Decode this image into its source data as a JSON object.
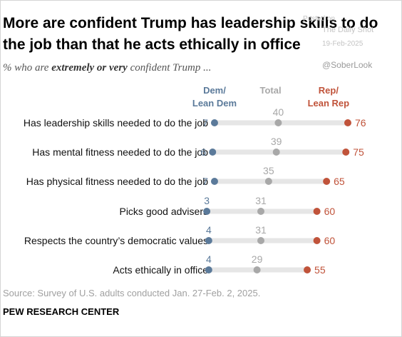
{
  "title": "More are confident Trump has leadership skills to do the job than that he acts ethically in office",
  "subtitle_prefix": "% who are ",
  "subtitle_emph": "extremely or very",
  "subtitle_suffix": " confident Trump ...",
  "watermark": {
    "posted": "Posted on",
    "site": "The Daily Shot",
    "date": "19-Feb-2025",
    "handle": "@SoberLook"
  },
  "source": "Source: Survey of U.S. adults conducted Jan. 27-Feb. 2, 2025.",
  "organization": "PEW RESEARCH CENTER",
  "colors": {
    "dem": "#5b7a9a",
    "total": "#a8a8a8",
    "rep": "#c0533a",
    "track": "#e6e6e6"
  },
  "chart_data": {
    "type": "dot",
    "xlim": [
      0,
      100
    ],
    "series": [
      {
        "name": "Dem/\nLean Dem",
        "key": "dem"
      },
      {
        "name": "Total",
        "key": "total"
      },
      {
        "name": "Rep/\nLean Rep",
        "key": "rep"
      }
    ],
    "categories": [
      "Has leadership skills needed to do the job",
      "Has mental fitness needed to do the job",
      "Has physical fitness needed to do the job",
      "Picks good advisers",
      "Respects the country’s democratic values",
      "Acts ethically in office"
    ],
    "values": {
      "dem": [
        7,
        6,
        7,
        3,
        4,
        4
      ],
      "total": [
        40,
        39,
        35,
        31,
        31,
        29
      ],
      "rep": [
        76,
        75,
        65,
        60,
        60,
        55
      ]
    }
  }
}
